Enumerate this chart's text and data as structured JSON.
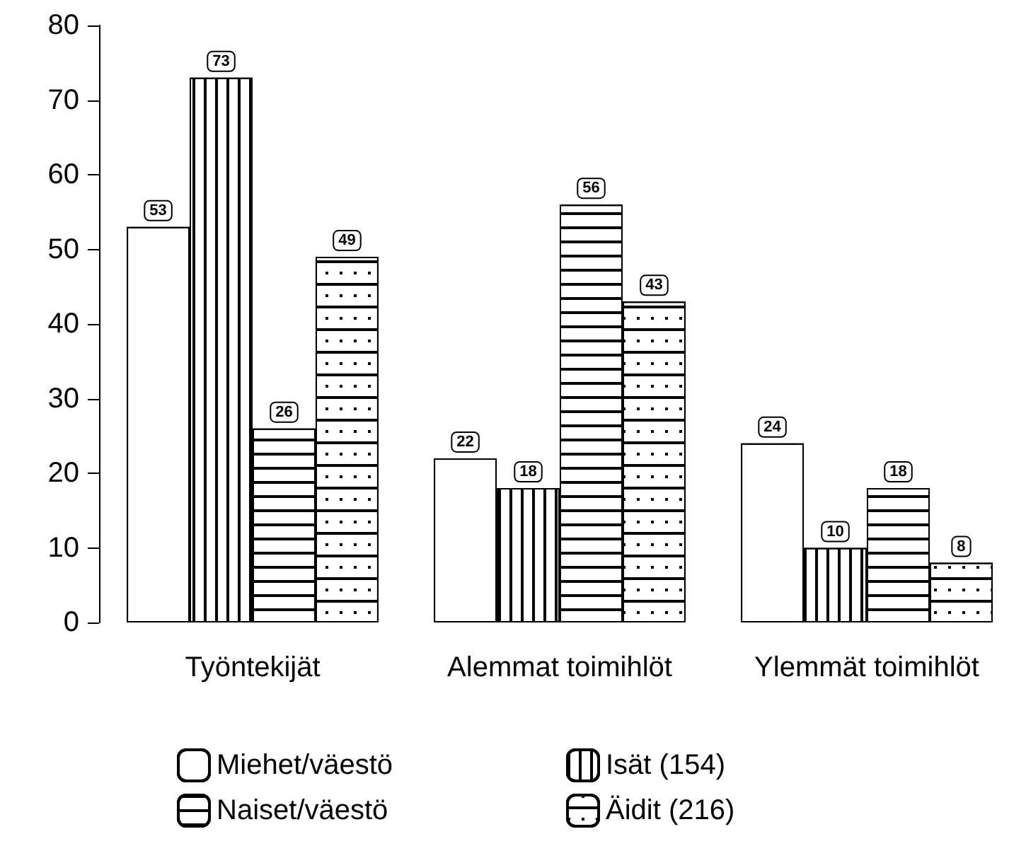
{
  "chart_data": {
    "type": "bar",
    "categories": [
      "Työntekijät",
      "Alemmat toimihlöt",
      "Ylemmät toimihlöt"
    ],
    "series": [
      {
        "name": "Miehet/väestö",
        "color": "#ffffff",
        "values": [
          53,
          22,
          24
        ]
      },
      {
        "name": "Isät (154)",
        "color": "#ffffff",
        "values": [
          73,
          18,
          10
        ]
      },
      {
        "name": "Naiset/väestö",
        "color": "#ffffff",
        "values": [
          26,
          56,
          18
        ]
      },
      {
        "name": "Äidit (216)",
        "color": "#ffffff",
        "values": [
          49,
          43,
          8
        ]
      }
    ],
    "ylim": [
      0,
      80
    ],
    "yticks": [
      0,
      10,
      20,
      30,
      40,
      50,
      60,
      70,
      80
    ],
    "grid": false,
    "legend": "bottom",
    "data_labels": true
  }
}
